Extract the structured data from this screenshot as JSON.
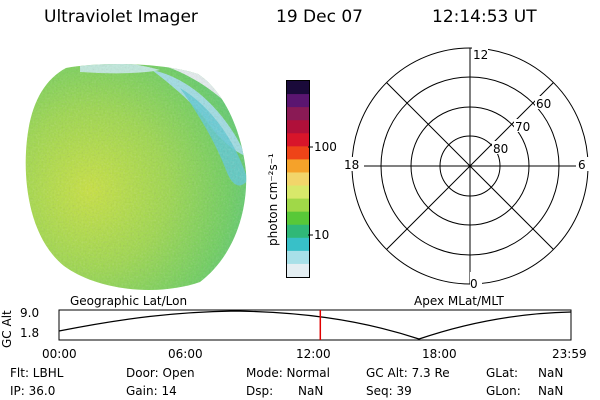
{
  "header": {
    "title": "Ultraviolet Imager",
    "date": "19 Dec 07",
    "time": "12:14:53 UT"
  },
  "colorbar": {
    "unit_label": "photon cm⁻²s⁻¹",
    "ticks": [
      "100",
      "10"
    ],
    "colors": [
      "#1a0a3a",
      "#5a1570",
      "#8a1a55",
      "#b0103a",
      "#d8152a",
      "#ee4418",
      "#f5a22a",
      "#f2d56a",
      "#d8e86a",
      "#a0d848",
      "#58c838",
      "#30b878",
      "#38c0c8",
      "#a8e0e8",
      "#e4eef2"
    ]
  },
  "polar_plot": {
    "labels": {
      "top": "12",
      "left": "18",
      "right": "6",
      "bottom": "0"
    },
    "lat_labels": [
      "60",
      "70",
      "80"
    ]
  },
  "timeline": {
    "left_label": "Geographic Lat/Lon",
    "right_label": "Apex MLat/MLT",
    "y_axis_label": "GC Alt",
    "y_ticks": [
      "9.0",
      "1.8"
    ],
    "x_ticks": [
      "00:00",
      "06:00",
      "12:00",
      "18:00",
      "23:59"
    ],
    "current_time_hours": 12.25
  },
  "info": {
    "filter": "Flt: LBHL",
    "ip": "IP: 36.0",
    "door": "Door: Open",
    "gain": "Gain: 14",
    "mode": "Mode: Normal",
    "dsp_label": "Dsp:",
    "dsp_value": "NaN",
    "gc_alt": "GC Alt: 7.3 Re",
    "seq": "Seq: 39",
    "glat_label": "GLat:",
    "glat_value": "NaN",
    "glon_label": "GLon:",
    "glon_value": "NaN"
  }
}
